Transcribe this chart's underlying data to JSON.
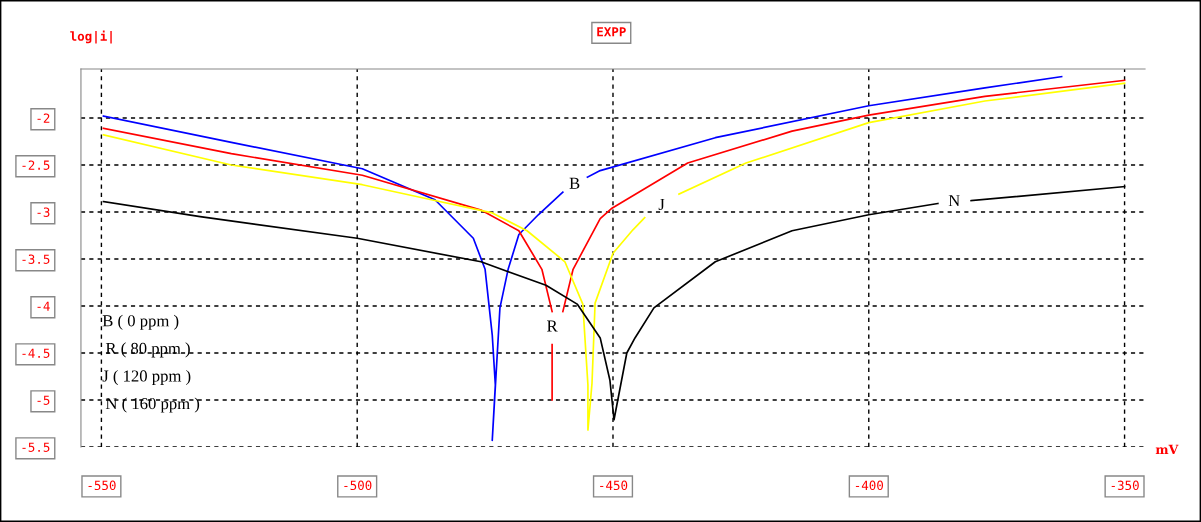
{
  "chart_data": {
    "type": "line",
    "title": "EXPP",
    "xlabel": "mV",
    "ylabel": "log|i|",
    "xlim": [
      -554,
      -346
    ],
    "ylim": [
      -5.5,
      -1.48
    ],
    "xticks": [
      -550,
      -500,
      -450,
      -400,
      -350
    ],
    "yticks": [
      -5.5,
      -5,
      -4.5,
      -4,
      -3.5,
      -3,
      -2.5,
      -2
    ],
    "grid": true,
    "line_style": "solid",
    "annotations": [
      "B ( 0 ppm )",
      "R ( 80 ppm )",
      "J ( 120 ppm )",
      "N ( 160 ppm )"
    ],
    "series": [
      {
        "name": "B",
        "color": "#0000ff",
        "x": [
          -549.6,
          -524.6,
          -499,
          -484.8,
          -477.3,
          -475,
          -473.6,
          -473,
          -473.6,
          -472.1,
          -470.5,
          -468.4,
          -464.6,
          -459.8,
          -457.5,
          -455,
          -452.5,
          -430,
          -400,
          -377.3,
          -362.3
        ],
        "values": [
          -1.98,
          -2.26,
          -2.54,
          -2.87,
          -3.28,
          -3.61,
          -4.31,
          -4.84,
          -5.43,
          -4.02,
          -3.61,
          -3.24,
          -3.03,
          -2.79,
          null,
          -2.63,
          -2.56,
          -2.21,
          -1.87,
          -1.68,
          -1.56
        ]
      },
      {
        "name": "R",
        "color": "#ff0000",
        "x": [
          -549.6,
          -524.6,
          -499,
          -475.8,
          -468.4,
          -463.9,
          -461.9
        ],
        "values": [
          -2.11,
          -2.38,
          -2.61,
          -2.98,
          -3.2,
          -3.61,
          -4.06
        ]
      },
      {
        "color": "#ff0000",
        "x": [
          -461.9,
          -461.9
        ],
        "values": [
          -4.41,
          -5.0
        ]
      },
      {
        "color": "#ff0000",
        "x": [
          -459.8,
          -457.8,
          -452.5,
          -450.2,
          -435.4,
          -415,
          -400,
          -377.3,
          -350
        ],
        "values": [
          -4.06,
          -3.61,
          -3.07,
          -2.96,
          -2.48,
          -2.14,
          -1.97,
          -1.77,
          -1.6
        ]
      },
      {
        "name": "J",
        "color": "#ffff00",
        "x": [
          -549.6,
          -524.6,
          -499,
          -485.5,
          -473.6,
          -466.8,
          -459.4,
          -455.9,
          -454.9,
          -454.9,
          -454.1,
          -453.5,
          -450,
          -446.1,
          -443.8,
          -440.5,
          -437.1,
          -424,
          -400,
          -377.3,
          -350
        ],
        "values": [
          -2.18,
          -2.5,
          -2.71,
          -2.87,
          -3.01,
          -3.2,
          -3.53,
          -3.98,
          -4.84,
          -5.32,
          -4.82,
          -3.97,
          -3.44,
          -3.19,
          -3.06,
          null,
          -2.81,
          -2.48,
          -2.05,
          -1.82,
          -1.63
        ]
      },
      {
        "name": "N",
        "color": "#000000",
        "x": [
          -549.6,
          -530.7,
          -500,
          -475.8,
          -463.1,
          -457,
          -452.5,
          -450.6,
          -449.8,
          -447.3,
          -445.7,
          -442,
          -430,
          -415,
          -400,
          -386.5,
          -383.3,
          -380,
          -350
        ],
        "values": [
          -2.89,
          -3.05,
          -3.28,
          -3.53,
          -3.78,
          -3.98,
          -4.34,
          -4.79,
          -5.21,
          -4.5,
          -4.34,
          -4.02,
          -3.53,
          -3.2,
          -3.03,
          -2.91,
          null,
          -2.88,
          -2.73
        ]
      }
    ]
  }
}
